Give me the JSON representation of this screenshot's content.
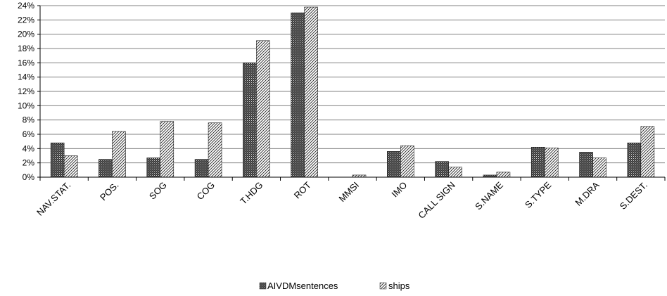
{
  "chart_data": {
    "type": "bar",
    "categories": [
      "NAV.STAT.",
      "POS.",
      "SOG",
      "COG",
      "T.HDG",
      "ROT",
      "MMSI",
      "IMO",
      "CALL SIGN",
      "S.NAME",
      "S.TYPE",
      "M.DRA",
      "S.DEST."
    ],
    "series": [
      {
        "name": "AIVDMsentences",
        "values": [
          4.8,
          2.5,
          2.7,
          2.5,
          16.0,
          23.0,
          0.0,
          3.6,
          2.2,
          0.3,
          4.2,
          3.5,
          4.8
        ],
        "pattern": "crosshatch-dark"
      },
      {
        "name": "ships",
        "values": [
          3.0,
          6.4,
          7.8,
          7.6,
          19.1,
          23.8,
          0.3,
          4.4,
          1.4,
          0.7,
          4.1,
          2.7,
          7.1
        ],
        "pattern": "diagonal-light"
      }
    ],
    "yticks": [
      "0%",
      "2%",
      "4%",
      "6%",
      "8%",
      "10%",
      "12%",
      "14%",
      "16%",
      "18%",
      "20%",
      "22%",
      "24%"
    ],
    "ylim": [
      0,
      24
    ],
    "ylabel": "",
    "xlabel": "",
    "title": "",
    "grid": true,
    "legend_position": "bottom-center",
    "colors": {
      "axis": "#000000",
      "grid": "#808080",
      "bar_dark": "#2b2b2b",
      "bar_light": "#ffffff"
    }
  }
}
